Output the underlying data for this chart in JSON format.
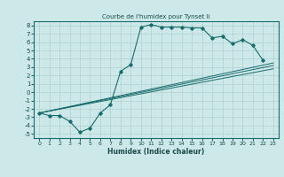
{
  "title": "Courbe de l'humidex pour Tynset Ii",
  "xlabel": "Humidex (Indice chaleur)",
  "background_color": "#cce8e8",
  "grid_color": "#b0d0d0",
  "line_color": "#1a6b6b",
  "xlim": [
    -0.5,
    23.5
  ],
  "ylim": [
    -5.5,
    8.5
  ],
  "xticks": [
    0,
    1,
    2,
    3,
    4,
    5,
    6,
    7,
    8,
    9,
    10,
    11,
    12,
    13,
    14,
    15,
    16,
    17,
    18,
    19,
    20,
    21,
    22,
    23
  ],
  "yticks": [
    -5,
    -4,
    -3,
    -2,
    -1,
    0,
    1,
    2,
    3,
    4,
    5,
    6,
    7,
    8
  ],
  "curve_x": [
    0,
    1,
    2,
    3,
    4,
    5,
    6,
    7,
    8,
    9,
    10,
    11,
    12,
    13,
    14,
    15,
    16,
    17,
    18,
    19,
    20,
    21,
    22
  ],
  "curve_y": [
    -2.5,
    -2.8,
    -2.8,
    -3.5,
    -4.8,
    -4.3,
    -2.5,
    -1.5,
    2.5,
    3.3,
    7.8,
    8.1,
    7.8,
    7.8,
    7.8,
    7.7,
    7.7,
    6.5,
    6.7,
    5.8,
    6.3,
    5.6,
    3.8
  ],
  "line1_x": [
    0,
    23
  ],
  "line1_y": [
    -2.5,
    3.5
  ],
  "line2_x": [
    0,
    23
  ],
  "line2_y": [
    -2.5,
    3.2
  ],
  "line3_x": [
    0,
    23
  ],
  "line3_y": [
    -2.5,
    2.8
  ]
}
